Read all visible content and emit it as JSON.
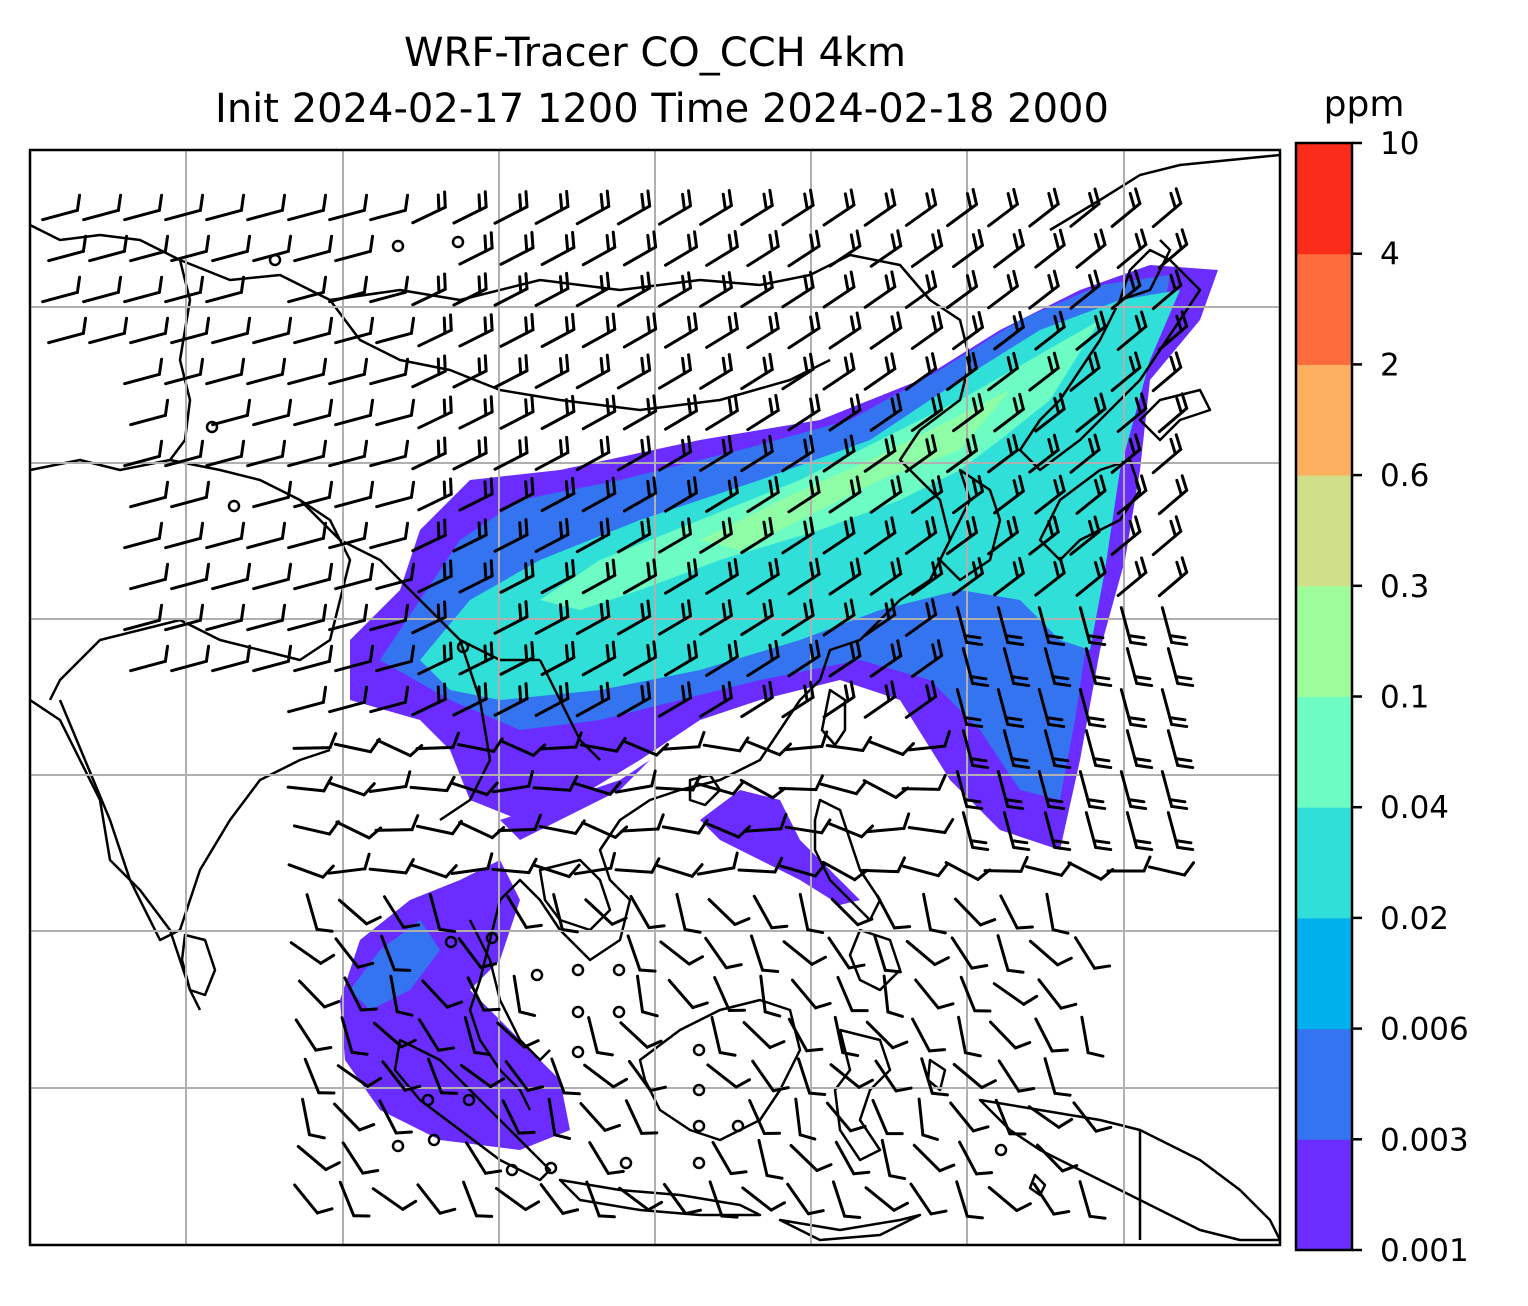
{
  "title": {
    "line1": "WRF-Tracer CO_CCH 4km",
    "line2": "Init 2024-02-17 1200 Time 2024-02-18 2000"
  },
  "colorbar": {
    "unit": "ppm",
    "levels": [
      "0.001",
      "0.003",
      "0.006",
      "0.02",
      "0.04",
      "0.1",
      "0.3",
      "0.6",
      "2",
      "4",
      "10"
    ],
    "colors": [
      "#6a2cff",
      "#3474f0",
      "#00b0ec",
      "#30e0d8",
      "#6cfcc4",
      "#9efc9a",
      "#d0e08a",
      "#fcb060",
      "#fc6c3c",
      "#fc2c1a"
    ]
  },
  "map": {
    "gridlines": "on",
    "wind_barbs": "on",
    "coastlines": "on"
  },
  "icons": {
    "wind_barb": "wind-barb-icon",
    "calm": "calm-circle-icon"
  }
}
